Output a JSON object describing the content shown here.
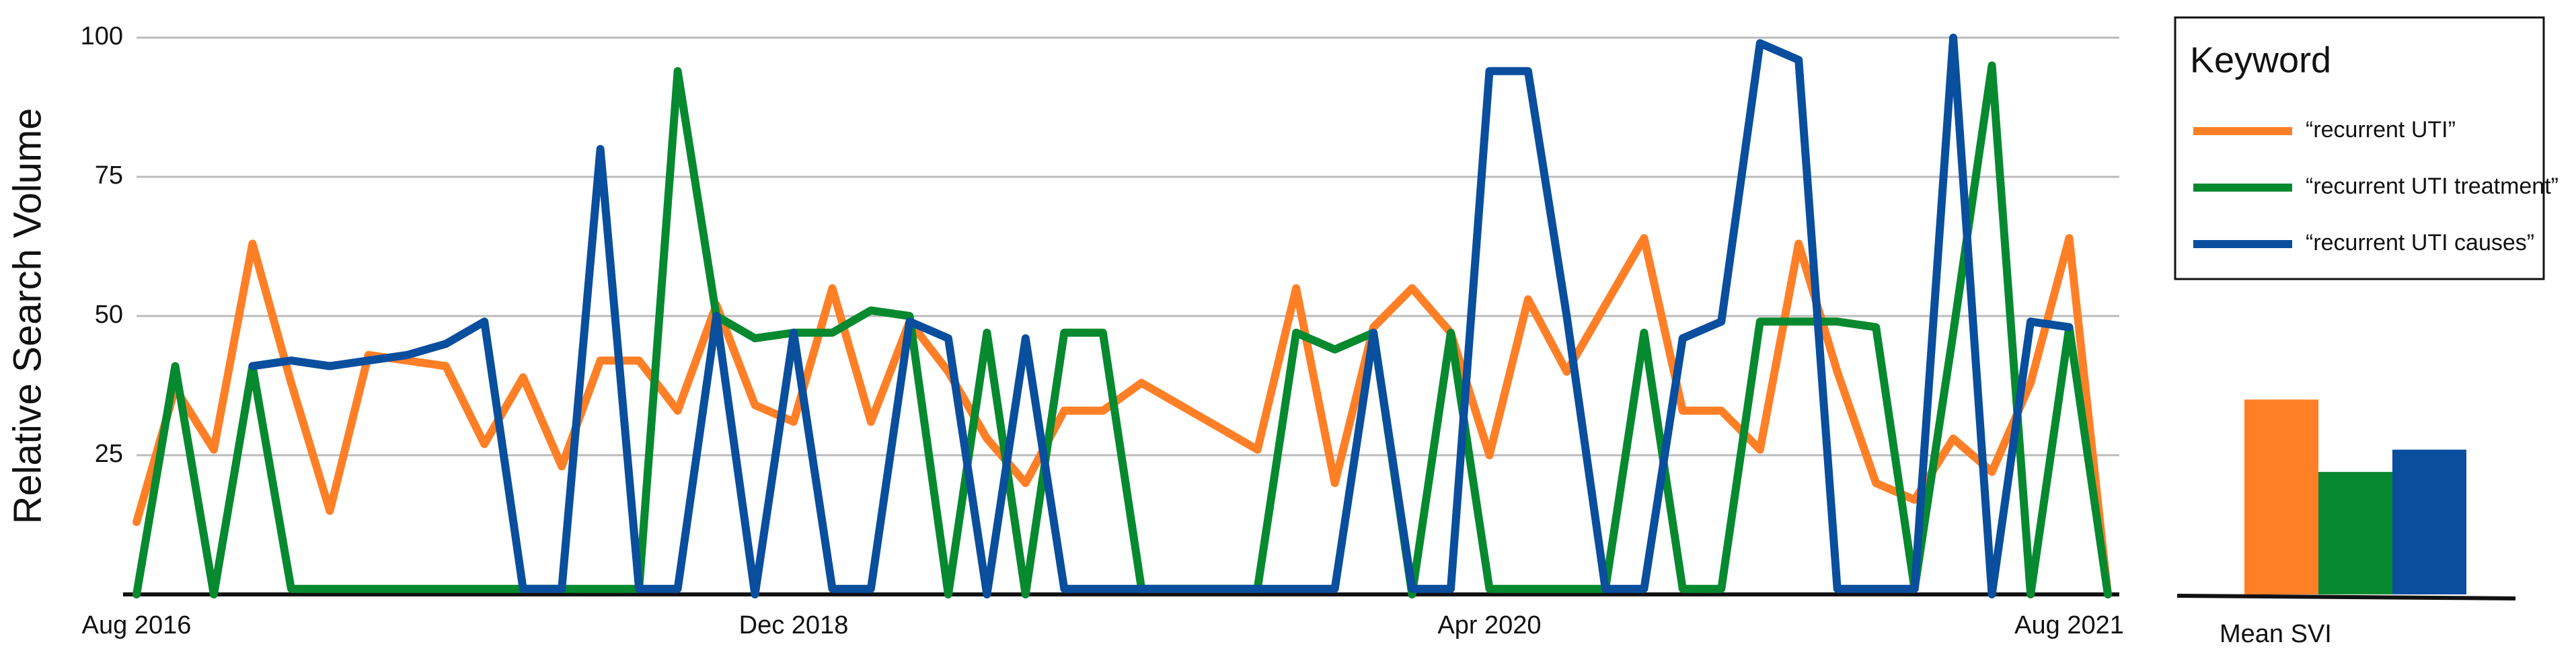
{
  "chart_data": [
    {
      "type": "line",
      "y_label": "Relative Search Volume",
      "categories": [
        "Aug 2016",
        null,
        null,
        null,
        null,
        null,
        null,
        null,
        null,
        null,
        null,
        null,
        null,
        null,
        null,
        null,
        null,
        "Dec 2018",
        null,
        null,
        null,
        null,
        null,
        null,
        null,
        null,
        null,
        null,
        null,
        null,
        null,
        null,
        null,
        null,
        null,
        "Apr 2020",
        null,
        null,
        null,
        null,
        null,
        null,
        null,
        null,
        null,
        null,
        null,
        null,
        null,
        null,
        "Aug 2021",
        null
      ],
      "series": [
        {
          "name": "“recurrent UTI”",
          "color": "#ff7f27",
          "values": [
            13,
            37,
            26,
            63,
            38,
            15,
            43,
            42,
            41,
            27,
            39,
            23,
            42,
            42,
            33,
            52,
            34,
            31,
            55,
            31,
            49,
            40,
            28,
            20,
            33,
            33,
            38,
            34,
            30,
            26,
            55,
            20,
            48,
            55,
            47,
            25,
            53,
            40,
            52,
            64,
            33,
            33,
            26,
            63,
            40,
            20,
            17,
            28,
            22,
            38,
            64,
            0
          ]
        },
        {
          "name": "“recurrent UTI treatment”",
          "color": "#07892f",
          "values": [
            0,
            41,
            0,
            41,
            1,
            1,
            1,
            1,
            1,
            1,
            1,
            1,
            1,
            1,
            94,
            50,
            46,
            47,
            47,
            51,
            50,
            0,
            47,
            0,
            47,
            47,
            1,
            1,
            1,
            1,
            47,
            44,
            47,
            0,
            47,
            1,
            1,
            1,
            1,
            47,
            1,
            1,
            49,
            49,
            49,
            48,
            1,
            47,
            95,
            0,
            48,
            0
          ]
        },
        {
          "name": "“recurrent UTI causes”",
          "color": "#0a4e9e",
          "values": [
            null,
            null,
            null,
            41,
            42,
            41,
            42,
            43,
            45,
            49,
            1,
            1,
            80,
            1,
            1,
            50,
            0,
            47,
            1,
            1,
            49,
            46,
            0,
            46,
            1,
            1,
            1,
            1,
            1,
            1,
            1,
            1,
            47,
            1,
            1,
            94,
            94,
            50,
            1,
            1,
            46,
            49,
            99,
            96,
            1,
            1,
            1,
            100,
            0,
            49,
            48,
            null
          ]
        }
      ],
      "ylim": [
        0,
        100
      ],
      "yticks": [
        25,
        50,
        75,
        100
      ],
      "grid": true,
      "legend_title": "Keyword",
      "legend": "outside-right"
    },
    {
      "type": "bar",
      "x_label": "Mean SVI",
      "values": [
        35,
        22,
        26
      ],
      "colors": [
        "#ff7f27",
        "#07892f",
        "#0a4e9e"
      ],
      "ylim": [
        0,
        100
      ]
    }
  ]
}
